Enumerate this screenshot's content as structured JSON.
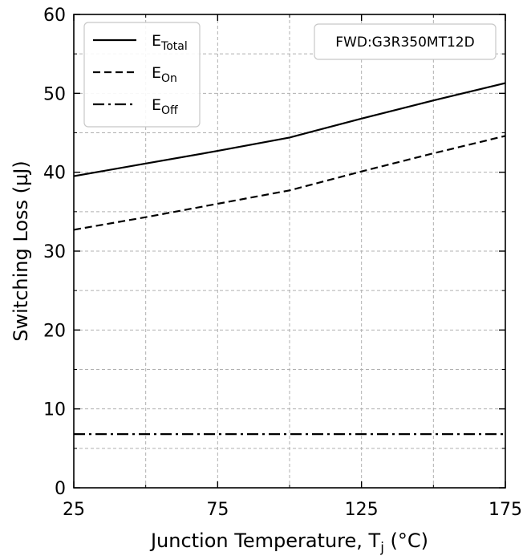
{
  "chart_data": {
    "type": "line",
    "title": "",
    "xlabel": "Junction Temperature, T",
    "xlabel_sub": "j",
    "xlabel_unit": " (°C)",
    "ylabel": "Switching Loss (µJ)",
    "xlim": [
      25,
      175
    ],
    "ylim": [
      0,
      60
    ],
    "x_major_ticks": [
      25,
      75,
      125,
      175
    ],
    "x_major_tick_labels": [
      "25",
      "75",
      "125",
      "175"
    ],
    "x_minor_ticks": [
      50,
      100,
      150
    ],
    "y_major_ticks": [
      0,
      10,
      20,
      30,
      40,
      50,
      60
    ],
    "y_major_tick_labels": [
      "0",
      "10",
      "20",
      "30",
      "40",
      "50",
      "60"
    ],
    "y_minor_ticks": [
      5,
      15,
      25,
      35,
      45,
      55
    ],
    "grid": true,
    "legend_position": "top-left",
    "annotation": "FWD:G3R350MT12D",
    "series": [
      {
        "name": "E",
        "name_sub": "Total",
        "style": "solid",
        "color": "#000000",
        "x": [
          25,
          50,
          75,
          100,
          125,
          150,
          175
        ],
        "y": [
          39.5,
          41.1,
          42.7,
          44.4,
          46.8,
          49.1,
          51.3
        ]
      },
      {
        "name": "E",
        "name_sub": "On",
        "style": "dashed",
        "color": "#000000",
        "x": [
          25,
          50,
          75,
          100,
          125,
          150,
          175
        ],
        "y": [
          32.7,
          34.3,
          36.0,
          37.7,
          40.1,
          42.4,
          44.6
        ]
      },
      {
        "name": "E",
        "name_sub": "Off",
        "style": "dashdot",
        "color": "#000000",
        "x": [
          25,
          50,
          75,
          100,
          125,
          150,
          175
        ],
        "y": [
          6.8,
          6.8,
          6.8,
          6.8,
          6.8,
          6.8,
          6.8
        ]
      }
    ]
  }
}
